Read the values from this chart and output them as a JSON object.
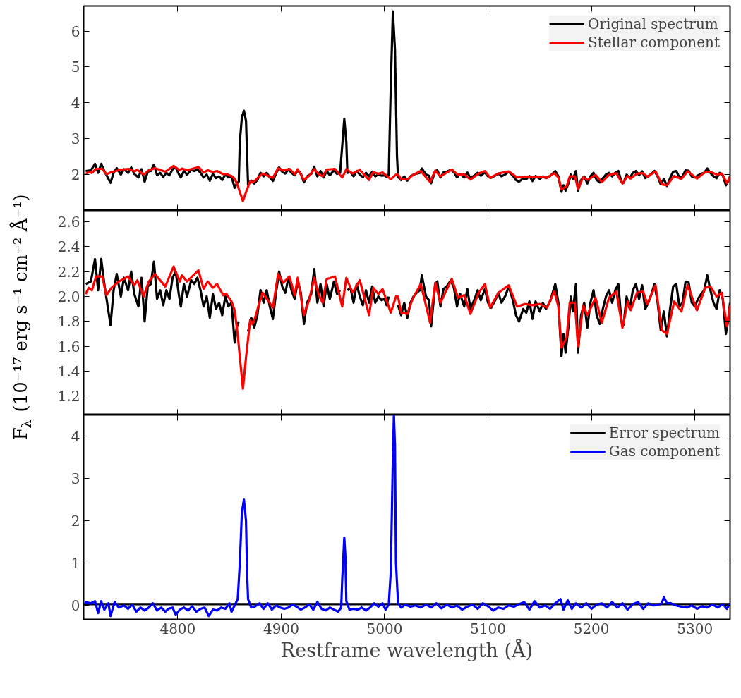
{
  "chart_data": [
    {
      "type": "line",
      "xlim": [
        4709,
        5334
      ],
      "ylim": [
        1.0,
        6.7
      ],
      "yticks": [
        2,
        3,
        4,
        5,
        6
      ],
      "xticks": [
        4800,
        4900,
        5000,
        5100,
        5200,
        5300
      ],
      "tick_labels": "y",
      "legend": "top right",
      "grid": false,
      "series": [
        {
          "name": "Original spectrum",
          "color": "#000000",
          "x": [
            4711,
            4716,
            4720,
            4723,
            4726,
            4729,
            4733,
            4735,
            4738,
            4741,
            4745,
            4748,
            4752,
            4755,
            4758,
            4762,
            4765,
            4768,
            4771,
            4774,
            4777,
            4780,
            4783,
            4786,
            4789,
            4792,
            4795,
            4798,
            4801,
            4803,
            4806,
            4809,
            4813,
            4816,
            4819,
            4822,
            4825,
            4828,
            4831,
            4834,
            4837,
            4840,
            4843,
            4846,
            4849,
            4852,
            4855,
            4857,
            4859,
            4860,
            4862,
            4864,
            4866,
            4867,
            4868,
            4871,
            4874,
            4877,
            4880,
            4883,
            4886,
            4889,
            4892,
            4895,
            4898,
            4901,
            4904,
            4907,
            4910,
            4913,
            4916,
            4919,
            4922,
            4925,
            4929,
            4932,
            4935,
            4938,
            4941,
            4944,
            4947,
            4951,
            4954,
            4957,
            4959,
            4961,
            4963,
            4964,
            4967,
            4970,
            4973,
            4976,
            4979,
            4982,
            4985,
            4988,
            4991,
            4994,
            4997,
            5000,
            5002,
            5004,
            5006,
            5008,
            5010,
            5012,
            5013,
            5016,
            5019,
            5022,
            5025,
            5028,
            5031,
            5034,
            5036,
            5040,
            5043,
            5045,
            5049,
            5051,
            5054,
            5057,
            5060,
            5064,
            5067,
            5070,
            5073,
            5077,
            5080,
            5083,
            5087,
            5090,
            5093,
            5097,
            5100,
            5103,
            5107,
            5110,
            5113,
            5117,
            5120,
            5124,
            5127,
            5130,
            5134,
            5137,
            5140,
            5143,
            5146,
            5150,
            5153,
            5156,
            5160,
            5165,
            5168,
            5171,
            5173,
            5175,
            5178,
            5180,
            5182,
            5185,
            5187,
            5190,
            5193,
            5196,
            5199,
            5202,
            5205,
            5208,
            5211,
            5214,
            5217,
            5220,
            5223,
            5226,
            5229,
            5231,
            5234,
            5237,
            5240,
            5243,
            5246,
            5249,
            5252,
            5255,
            5258,
            5261,
            5264,
            5267,
            5270,
            5273,
            5276,
            5279,
            5282,
            5285,
            5288,
            5291,
            5294,
            5297,
            5300,
            5303,
            5306,
            5309,
            5312,
            5315,
            5318,
            5321,
            5324,
            5327,
            5330,
            5332,
            5334
          ],
          "values": [
            2.1,
            2.12,
            2.3,
            2.05,
            2.3,
            2.1,
            1.88,
            1.77,
            2.05,
            2.18,
            2.0,
            2.15,
            2.05,
            2.2,
            2.02,
            1.92,
            2.15,
            1.8,
            2.08,
            2.1,
            2.28,
            1.98,
            2.05,
            1.93,
            2.05,
            1.98,
            2.15,
            2.2,
            2.02,
            1.92,
            2.1,
            2.0,
            2.13,
            2.1,
            2.15,
            2.05,
            1.92,
            2.0,
            1.83,
            2.02,
            1.9,
            1.95,
            1.85,
            2.0,
            1.92,
            1.95,
            1.63,
            1.75,
            1.8,
            2.9,
            3.6,
            3.78,
            3.5,
            2.6,
            1.72,
            1.83,
            1.75,
            1.85,
            2.05,
            1.95,
            2.05,
            1.92,
            1.82,
            2.03,
            2.2,
            2.08,
            2.03,
            2.15,
            2.05,
            1.98,
            2.12,
            2.03,
            1.78,
            1.95,
            2.02,
            2.22,
            1.95,
            2.1,
            1.92,
            2.1,
            1.98,
            2.12,
            2.02,
            2.05,
            2.8,
            3.55,
            2.9,
            2.05,
            2.07,
            1.95,
            2.1,
            2.0,
            1.93,
            2.05,
            1.95,
            2.08,
            1.95,
            2.0,
            1.97,
            1.98,
            1.93,
            2.0,
            4.5,
            6.55,
            5.5,
            2.5,
            1.93,
            1.85,
            1.95,
            1.83,
            1.95,
            2.0,
            2.03,
            2.05,
            2.17,
            2.0,
            1.97,
            1.76,
            2.1,
            2.12,
            1.92,
            2.06,
            2.08,
            2.13,
            2.07,
            1.92,
            2.02,
            1.92,
            2.06,
            1.9,
            1.98,
            2.05,
            1.97,
            2.06,
            1.95,
            1.91,
            1.97,
            2.03,
            1.95,
            2.01,
            2.08,
            1.97,
            1.85,
            1.8,
            1.9,
            1.87,
            1.96,
            1.82,
            1.96,
            1.88,
            1.95,
            1.9,
            1.96,
            2.1,
            1.95,
            1.52,
            1.7,
            1.55,
            1.78,
            2.0,
            1.88,
            2.1,
            1.55,
            1.85,
            1.95,
            1.75,
            1.95,
            2.05,
            1.85,
            1.78,
            1.9,
            2.0,
            2.05,
            1.95,
            2.05,
            2.1,
            1.8,
            1.77,
            2.0,
            1.9,
            2.05,
            2.1,
            1.98,
            2.09,
            1.9,
            1.95,
            2.02,
            2.1,
            1.95,
            1.73,
            1.88,
            1.68,
            1.9,
            2.08,
            2.1,
            1.92,
            1.95,
            2.12,
            2.11,
            1.95,
            1.92,
            1.98,
            2.02,
            2.05,
            2.17,
            2.05,
            1.95,
            1.9,
            2.05,
            1.98,
            1.7,
            1.8,
            1.95
          ]
        },
        {
          "name": "Stellar component",
          "color": "#ff0000",
          "x": [
            4711,
            4714,
            4717,
            4721,
            4727,
            4731,
            4736,
            4743,
            4752,
            4758,
            4761,
            4767,
            4772,
            4778,
            4788,
            4796,
            4802,
            4804,
            4809,
            4820,
            4825,
            4829,
            4834,
            4838,
            4844,
            4847,
            4852,
            4855,
            4858,
            4863,
            4866,
            4870,
            4872,
            4874,
            4879,
            4882,
            4888,
            4892,
            4897,
            4902,
            4908,
            4913,
            4916,
            4922,
            4927,
            4932,
            4936,
            4940,
            4944,
            4952,
            4959,
            4963,
            4969,
            4976,
            4985,
            4989,
            4994,
            4998,
            5006,
            5011,
            5013,
            5016,
            5022,
            5027,
            5035,
            5044,
            5049,
            5054,
            5065,
            5071,
            5077,
            5083,
            5091,
            5097,
            5102,
            5110,
            5120,
            5128,
            5136,
            5143,
            5150,
            5157,
            5164,
            5168,
            5171,
            5176,
            5179,
            5184,
            5187,
            5192,
            5196,
            5204,
            5210,
            5217,
            5224,
            5230,
            5235,
            5238,
            5244,
            5250,
            5254,
            5262,
            5268,
            5273,
            5280,
            5287,
            5293,
            5302,
            5310,
            5315,
            5321,
            5326,
            5331,
            5334
          ],
          "values": [
            2.02,
            2.07,
            2.05,
            2.16,
            2.16,
            2.01,
            2.07,
            2.12,
            2.16,
            2.09,
            2.13,
            2.0,
            2.12,
            2.18,
            2.08,
            2.24,
            2.12,
            2.17,
            2.12,
            2.21,
            2.06,
            2.12,
            2.07,
            2.1,
            2.01,
            2.02,
            1.96,
            1.89,
            1.69,
            1.26,
            1.51,
            1.81,
            1.78,
            1.81,
            1.95,
            2.03,
            1.96,
            1.91,
            2.18,
            2.11,
            2.16,
            2.01,
            2.15,
            1.85,
            1.97,
            2.15,
            2.02,
            1.95,
            2.14,
            2.16,
            1.92,
            2.15,
            2.03,
            2.13,
            1.85,
            2.07,
            2.02,
            2.06,
            1.87,
            2.0,
            2.0,
            1.87,
            1.86,
            1.98,
            2.1,
            1.79,
            2.11,
            1.95,
            2.14,
            1.99,
            2.01,
            1.86,
            2.03,
            2.1,
            1.91,
            2.03,
            2.09,
            1.92,
            1.94,
            1.93,
            1.94,
            1.91,
            2.04,
            1.92,
            1.59,
            1.67,
            1.95,
            1.95,
            1.6,
            1.93,
            1.85,
            1.99,
            1.79,
            1.99,
            2.04,
            1.75,
            1.96,
            1.89,
            2.03,
            2.04,
            1.94,
            2.09,
            1.73,
            1.7,
            1.96,
            1.88,
            2.09,
            1.89,
            2.07,
            2.08,
            2.0,
            2.03,
            1.76,
            1.93
          ]
        }
      ]
    },
    {
      "type": "line",
      "xlim": [
        4709,
        5334
      ],
      "ylim": [
        1.05,
        2.69
      ],
      "yticks": [
        1.2,
        1.4,
        1.6,
        1.8,
        {
          "value": 2,
          "label": "2.0"
        },
        2.2,
        2.4,
        2.6
      ],
      "xticks": [
        4800,
        4900,
        5000,
        5100,
        5200,
        5300
      ],
      "tick_labels": "y",
      "grid": false,
      "ylabel": "F$_{λ}$ (10⁻¹⁷ erg s⁻¹ cm⁻² Å⁻¹)",
      "series": [
        {
          "color": "#000000",
          "x": [
            4711,
            4716,
            4720,
            4723,
            4726,
            4729,
            4733,
            4735,
            4738,
            4741,
            4745,
            4748,
            4752,
            4755,
            4758,
            4762,
            4765,
            4768,
            4771,
            4774,
            4777,
            4780,
            4783,
            4786,
            4789,
            4792,
            4795,
            4798,
            4801,
            4803,
            4806,
            4809,
            4813,
            4816,
            4819,
            4822,
            4825,
            4828,
            4831,
            4834,
            4837,
            4840,
            4843,
            4846,
            4849,
            4852,
            4855,
            4857,
            4859,
            4860,
            4862,
            4864,
            4866,
            4867,
            4868,
            4871,
            4874,
            4877,
            4880,
            4883,
            4886,
            4889,
            4892,
            4895,
            4898,
            4901,
            4904,
            4907,
            4910,
            4913,
            4916,
            4919,
            4922,
            4925,
            4929,
            4932,
            4935,
            4938,
            4941,
            4944,
            4947,
            4951,
            4954,
            4957,
            4959,
            4961,
            4963,
            4964,
            4967,
            4970,
            4973,
            4976,
            4979,
            4982,
            4985,
            4988,
            4991,
            4994,
            4997,
            5000,
            5002,
            5004,
            5006,
            5008,
            5010,
            5012,
            5013,
            5016,
            5019,
            5022,
            5025,
            5028,
            5031,
            5034,
            5036,
            5040,
            5043,
            5045,
            5049,
            5051,
            5054,
            5057,
            5060,
            5064,
            5067,
            5070,
            5073,
            5077,
            5080,
            5083,
            5087,
            5090,
            5093,
            5097,
            5100,
            5103,
            5107,
            5110,
            5113,
            5117,
            5120,
            5124,
            5127,
            5130,
            5134,
            5137,
            5140,
            5143,
            5146,
            5150,
            5153,
            5156,
            5160,
            5165,
            5168,
            5171,
            5173,
            5175,
            5178,
            5180,
            5182,
            5185,
            5187,
            5190,
            5193,
            5196,
            5199,
            5202,
            5205,
            5208,
            5211,
            5214,
            5217,
            5220,
            5223,
            5226,
            5229,
            5231,
            5234,
            5237,
            5240,
            5243,
            5246,
            5249,
            5252,
            5255,
            5258,
            5261,
            5264,
            5267,
            5270,
            5273,
            5276,
            5279,
            5282,
            5285,
            5288,
            5291,
            5294,
            5297,
            5300,
            5303,
            5306,
            5309,
            5312,
            5315,
            5318,
            5321,
            5324,
            5327,
            5330,
            5332,
            5334
          ],
          "values": [
            2.1,
            2.12,
            2.3,
            2.05,
            2.3,
            2.1,
            1.88,
            1.77,
            2.05,
            2.18,
            2.0,
            2.15,
            2.05,
            2.2,
            2.02,
            1.92,
            2.15,
            1.8,
            2.08,
            2.1,
            2.28,
            1.98,
            2.05,
            1.93,
            2.05,
            1.98,
            2.15,
            2.2,
            2.02,
            1.92,
            2.1,
            2.0,
            2.13,
            2.1,
            2.15,
            2.05,
            1.92,
            2.0,
            1.83,
            2.02,
            1.9,
            1.95,
            1.85,
            2.0,
            1.92,
            1.95,
            1.63,
            1.75,
            1.8,
            null,
            null,
            null,
            null,
            null,
            1.72,
            1.83,
            1.75,
            1.85,
            2.05,
            1.95,
            2.05,
            1.92,
            1.82,
            2.03,
            2.2,
            2.08,
            2.03,
            2.15,
            2.05,
            1.98,
            2.12,
            2.03,
            1.78,
            1.95,
            2.02,
            2.22,
            1.95,
            2.1,
            1.92,
            2.1,
            1.98,
            2.12,
            2.02,
            2.05,
            null,
            null,
            null,
            2.05,
            2.07,
            1.95,
            2.1,
            2.0,
            1.93,
            2.05,
            1.95,
            2.08,
            1.95,
            2.0,
            1.97,
            1.98,
            1.93,
            2.0,
            null,
            null,
            null,
            null,
            1.93,
            1.85,
            1.95,
            1.83,
            1.95,
            2.0,
            2.03,
            2.05,
            2.17,
            2.0,
            1.97,
            1.76,
            2.1,
            2.12,
            1.92,
            2.06,
            2.08,
            2.13,
            2.07,
            1.92,
            2.02,
            1.92,
            2.06,
            1.9,
            1.98,
            2.05,
            1.97,
            2.06,
            1.95,
            1.91,
            1.97,
            2.03,
            1.95,
            2.01,
            2.08,
            1.97,
            1.85,
            1.8,
            1.9,
            1.87,
            1.96,
            1.82,
            1.96,
            1.88,
            1.95,
            1.9,
            1.96,
            2.1,
            1.95,
            1.52,
            1.7,
            1.55,
            1.78,
            2.0,
            1.88,
            2.1,
            1.55,
            1.85,
            1.95,
            1.75,
            1.95,
            2.05,
            1.85,
            1.78,
            1.9,
            2.0,
            2.05,
            1.95,
            2.05,
            2.1,
            1.8,
            1.77,
            2.0,
            1.9,
            2.05,
            2.1,
            1.98,
            2.09,
            1.9,
            1.95,
            2.02,
            2.1,
            1.95,
            1.73,
            1.88,
            1.68,
            1.9,
            2.08,
            2.1,
            1.92,
            1.95,
            2.12,
            2.11,
            1.95,
            1.92,
            1.98,
            2.02,
            2.05,
            2.17,
            2.05,
            1.95,
            1.9,
            2.05,
            1.98,
            1.7,
            1.8,
            1.95
          ]
        },
        {
          "color": "#ff0000",
          "x": [
            4711,
            4714,
            4717,
            4721,
            4727,
            4731,
            4736,
            4743,
            4752,
            4758,
            4761,
            4767,
            4772,
            4778,
            4788,
            4796,
            4802,
            4804,
            4809,
            4820,
            4825,
            4829,
            4834,
            4838,
            4844,
            4847,
            4852,
            4855,
            4858,
            4863,
            4866,
            4870,
            4872,
            4874,
            4879,
            4882,
            4888,
            4892,
            4897,
            4902,
            4908,
            4913,
            4916,
            4922,
            4927,
            4932,
            4936,
            4940,
            4944,
            4952,
            4959,
            4963,
            4969,
            4976,
            4985,
            4989,
            4994,
            4998,
            5006,
            5011,
            5013,
            5016,
            5022,
            5027,
            5035,
            5044,
            5049,
            5054,
            5065,
            5071,
            5077,
            5083,
            5091,
            5097,
            5102,
            5110,
            5120,
            5128,
            5136,
            5143,
            5150,
            5157,
            5164,
            5168,
            5171,
            5176,
            5179,
            5184,
            5187,
            5192,
            5196,
            5204,
            5210,
            5217,
            5224,
            5230,
            5235,
            5238,
            5244,
            5250,
            5254,
            5262,
            5268,
            5273,
            5280,
            5287,
            5293,
            5302,
            5310,
            5315,
            5321,
            5326,
            5331,
            5334
          ],
          "values": [
            2.02,
            2.07,
            2.05,
            2.16,
            2.16,
            2.01,
            2.07,
            2.12,
            2.16,
            2.09,
            2.13,
            2.0,
            2.12,
            2.18,
            2.08,
            2.24,
            2.12,
            2.17,
            2.12,
            2.21,
            2.06,
            2.12,
            2.07,
            2.1,
            2.01,
            2.02,
            1.96,
            1.89,
            1.69,
            1.26,
            1.51,
            1.81,
            1.78,
            1.81,
            1.95,
            2.03,
            1.96,
            1.91,
            2.18,
            2.11,
            2.16,
            2.01,
            2.15,
            1.85,
            1.97,
            2.15,
            2.02,
            1.95,
            2.14,
            2.16,
            1.92,
            2.15,
            2.03,
            2.13,
            1.85,
            2.07,
            2.02,
            2.06,
            1.87,
            2.0,
            2.0,
            1.87,
            1.86,
            1.98,
            2.1,
            1.79,
            2.11,
            1.95,
            2.14,
            1.99,
            2.01,
            1.86,
            2.03,
            2.1,
            1.91,
            2.03,
            2.09,
            1.92,
            1.94,
            1.93,
            1.94,
            1.91,
            2.04,
            1.92,
            1.59,
            1.67,
            1.95,
            1.95,
            1.6,
            1.93,
            1.85,
            1.99,
            1.79,
            1.99,
            2.04,
            1.75,
            1.96,
            1.89,
            2.03,
            2.04,
            1.94,
            2.09,
            1.73,
            1.7,
            1.96,
            1.88,
            2.09,
            1.89,
            2.07,
            2.08,
            2.0,
            2.03,
            1.76,
            1.93
          ]
        }
      ]
    },
    {
      "type": "line",
      "xlim": [
        4709,
        5334
      ],
      "ylim": [
        -0.33,
        4.5
      ],
      "yticks": [
        0,
        1,
        2,
        3,
        4
      ],
      "xticks": [
        4800,
        4900,
        5000,
        5100,
        5200,
        5300
      ],
      "legend": "top right",
      "grid": false,
      "xlabel": "Restframe wavelength (Å)",
      "series": [
        {
          "name": "Error spectrum",
          "color": "#000000",
          "x": [
            4709,
            5334
          ],
          "values": [
            0.03,
            0.03
          ]
        },
        {
          "name": "Gas component",
          "color": "#0000ff",
          "x": [
            4710,
            4716,
            4720,
            4723,
            4726,
            4729,
            4733,
            4735,
            4739,
            4743,
            4748,
            4752,
            4756,
            4760,
            4764,
            4768,
            4772,
            4776,
            4780,
            4784,
            4788,
            4791,
            4795,
            4798,
            4802,
            4806,
            4810,
            4814,
            4818,
            4822,
            4826,
            4830,
            4834,
            4838,
            4842,
            4846,
            4850,
            4852,
            4855,
            4858,
            4860,
            4862,
            4864,
            4866,
            4867,
            4868,
            4871,
            4875,
            4879,
            4883,
            4887,
            4891,
            4895,
            4899,
            4903,
            4907,
            4911,
            4915,
            4919,
            4923,
            4927,
            4931,
            4935,
            4939,
            4943,
            4947,
            4951,
            4955,
            4958,
            4959,
            4961,
            4962,
            4963,
            4966,
            4970,
            4974,
            4978,
            4982,
            4986,
            4990,
            4994,
            4998,
            5001,
            5004,
            5006,
            5008,
            5009,
            5010,
            5011,
            5013,
            5016,
            5020,
            5025,
            5030,
            5035,
            5040,
            5045,
            5050,
            5055,
            5060,
            5065,
            5070,
            5075,
            5080,
            5085,
            5090,
            5095,
            5100,
            5105,
            5110,
            5115,
            5120,
            5125,
            5130,
            5135,
            5140,
            5145,
            5150,
            5155,
            5160,
            5165,
            5170,
            5173,
            5177,
            5181,
            5185,
            5190,
            5195,
            5200,
            5205,
            5210,
            5215,
            5220,
            5225,
            5230,
            5235,
            5240,
            5245,
            5250,
            5255,
            5260,
            5265,
            5268,
            5270,
            5273,
            5277,
            5282,
            5287,
            5292,
            5297,
            5302,
            5307,
            5312,
            5317,
            5322,
            5327,
            5331,
            5334
          ],
          "values": [
            0.08,
            0.05,
            0.1,
            -0.18,
            0.1,
            -0.1,
            0.05,
            -0.25,
            0.08,
            -0.05,
            0.0,
            -0.08,
            0.02,
            -0.15,
            -0.05,
            -0.12,
            -0.05,
            0.05,
            -0.12,
            -0.05,
            -0.15,
            -0.08,
            -0.05,
            -0.22,
            -0.1,
            -0.05,
            -0.12,
            -0.02,
            -0.15,
            -0.08,
            -0.05,
            -0.25,
            -0.1,
            -0.12,
            -0.05,
            -0.08,
            0.05,
            -0.15,
            0.0,
            0.15,
            1.0,
            2.2,
            2.5,
            2.0,
            0.8,
            0.15,
            -0.05,
            -0.02,
            0.05,
            -0.08,
            0.05,
            -0.1,
            0.0,
            -0.05,
            -0.08,
            -0.05,
            0.02,
            -0.03,
            -0.1,
            -0.05,
            0.03,
            -0.1,
            0.08,
            -0.08,
            -0.12,
            -0.05,
            -0.1,
            -0.15,
            -0.05,
            0.6,
            1.6,
            1.2,
            0.1,
            -0.1,
            -0.08,
            -0.1,
            -0.05,
            -0.12,
            -0.05,
            0.05,
            -0.03,
            0.05,
            -0.1,
            0.02,
            0.8,
            3.5,
            4.5,
            3.8,
            1.0,
            0.05,
            -0.05,
            0.02,
            -0.03,
            0.0,
            -0.05,
            0.02,
            -0.05,
            0.05,
            -0.07,
            0.02,
            -0.05,
            0.0,
            -0.1,
            -0.03,
            0.02,
            -0.08,
            0.05,
            -0.02,
            -0.12,
            -0.05,
            -0.08,
            0.0,
            -0.03,
            0.03,
            0.08,
            -0.1,
            0.1,
            -0.05,
            0.0,
            -0.08,
            0.05,
            0.15,
            -0.1,
            0.12,
            -0.08,
            0.05,
            -0.05,
            0.05,
            -0.08,
            0.02,
            0.05,
            -0.05,
            0.08,
            -0.05,
            0.05,
            -0.1,
            0.03,
            0.08,
            -0.08,
            0.05,
            0.0,
            0.02,
            0.05,
            0.2,
            0.05,
            0.05,
            0.0,
            -0.03,
            -0.05,
            0.0,
            -0.08,
            -0.02,
            -0.05,
            0.02,
            -0.05,
            0.03,
            -0.08,
            0.05
          ]
        }
      ]
    }
  ]
}
